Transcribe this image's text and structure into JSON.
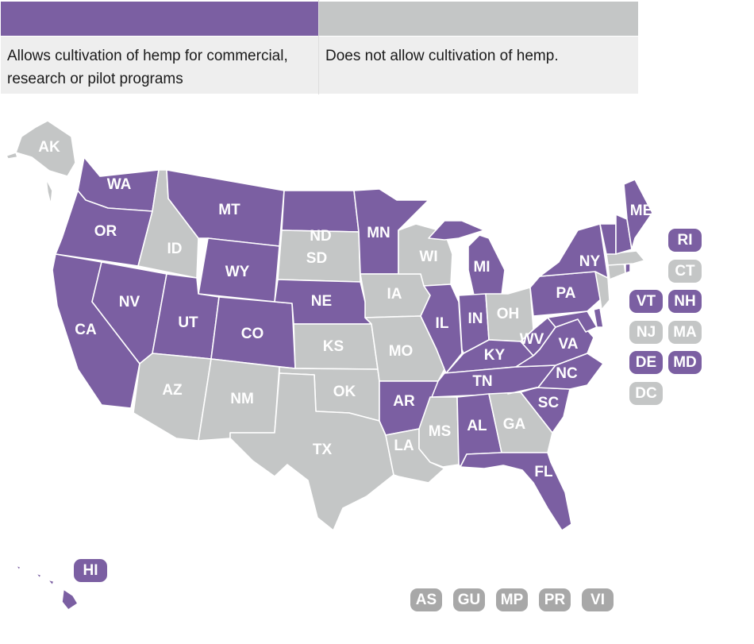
{
  "legend": {
    "allow_label": "Allows cultivation of hemp for commercial, research or pilot programs",
    "no_label": "Does not allow cultivation of hemp."
  },
  "colors": {
    "allow": "#7b5fa2",
    "no": "#c4c6c6",
    "territory": "#a8a8a8"
  },
  "status": {
    "allow": [
      "WA",
      "OR",
      "CA",
      "NV",
      "UT",
      "MT",
      "WY",
      "CO",
      "ND",
      "NE",
      "MN",
      "IL",
      "IN",
      "MI",
      "KY",
      "TN",
      "AR",
      "AL",
      "FL",
      "SC",
      "NC",
      "VA",
      "WV",
      "PA",
      "NY",
      "VT",
      "NH",
      "ME",
      "RI",
      "DE",
      "MD",
      "HI"
    ],
    "no": [
      "AK",
      "ID",
      "AZ",
      "NM",
      "TX",
      "OK",
      "KS",
      "SD",
      "IA",
      "MO",
      "WI",
      "OH",
      "LA",
      "MS",
      "GA",
      "NJ",
      "CT",
      "MA",
      "DC"
    ]
  },
  "state_labels": [
    "WA",
    "OR",
    "CA",
    "NV",
    "ID",
    "MT",
    "WY",
    "UT",
    "AZ",
    "NM",
    "CO",
    "ND",
    "SD",
    "NE",
    "KS",
    "OK",
    "TX",
    "MN",
    "IA",
    "MO",
    "AR",
    "LA",
    "WI",
    "IL",
    "MS",
    "MI",
    "IN",
    "KY",
    "TN",
    "AL",
    "OH",
    "WV",
    "GA",
    "FL",
    "SC",
    "NC",
    "VA",
    "PA",
    "NY",
    "ME",
    "AK"
  ],
  "side_badges": [
    "RI",
    "CT",
    "VT",
    "NH",
    "NJ",
    "MA",
    "DE",
    "MD",
    "DC",
    "HI"
  ],
  "territories": [
    "AS",
    "GU",
    "MP",
    "PR",
    "VI"
  ]
}
